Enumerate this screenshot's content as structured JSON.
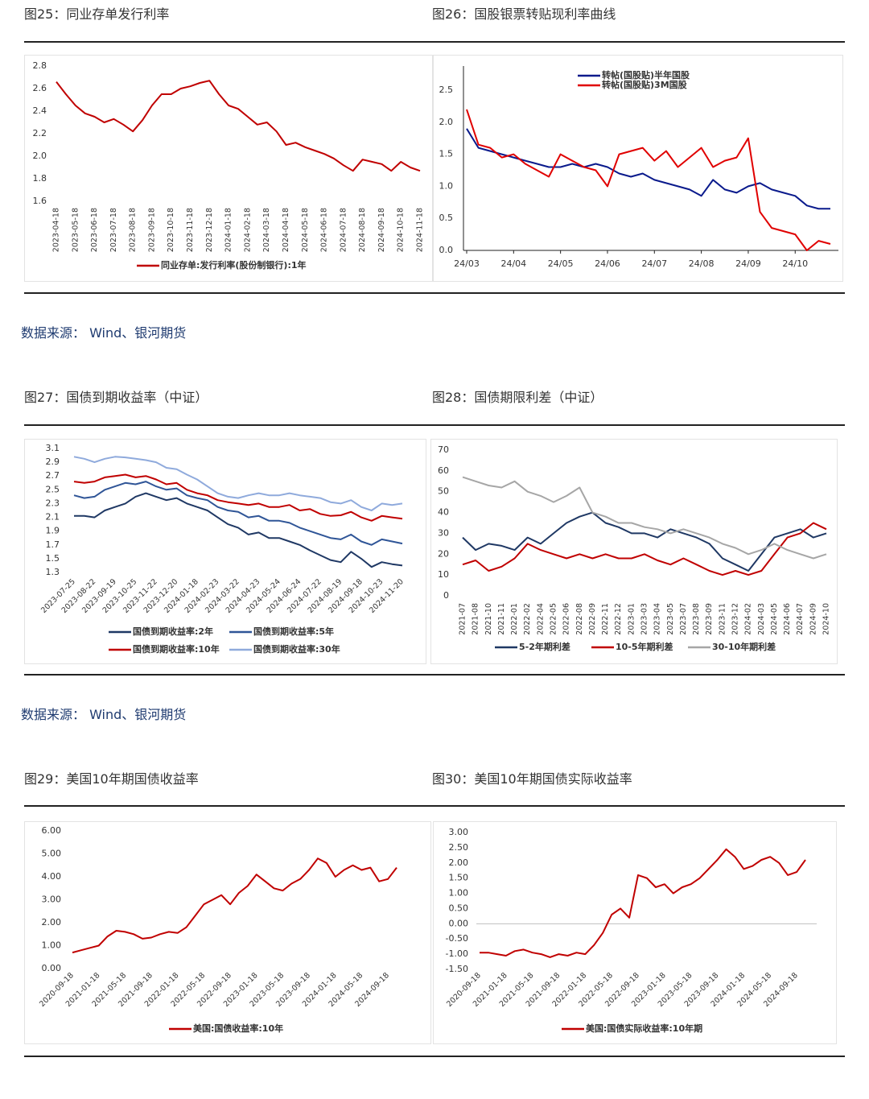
{
  "sources": [
    "数据来源： Wind、银河期货",
    "数据来源： Wind、银河期货"
  ],
  "chart_data": [
    {
      "type": "line",
      "title": "图25：同业存单发行利率",
      "legend": "bottom",
      "categories": [
        "2023-04-18",
        null,
        "2023-05-18",
        null,
        "2023-06-18",
        null,
        "2023-07-18",
        null,
        "2023-08-18",
        null,
        "2023-09-18",
        null,
        "2023-10-18",
        null,
        "2023-11-18",
        null,
        "2023-12-18",
        null,
        "2024-01-18",
        null,
        "2024-02-18",
        null,
        "2024-03-18",
        null,
        "2024-04-18",
        null,
        "2024-05-18",
        null,
        "2024-06-18",
        null,
        "2024-07-18",
        null,
        "2024-08-18",
        null,
        "2024-09-18",
        null,
        "2024-10-18",
        null,
        "2024-11-18"
      ],
      "series": [
        {
          "name": "同业存单:发行利率(股份制银行):1年",
          "color": "#c00000",
          "values": [
            2.66,
            2.55,
            2.45,
            2.38,
            2.35,
            2.3,
            2.33,
            2.28,
            2.22,
            2.32,
            2.45,
            2.55,
            2.55,
            2.6,
            2.62,
            2.65,
            2.67,
            2.55,
            2.45,
            2.42,
            2.35,
            2.28,
            2.3,
            2.22,
            2.1,
            2.12,
            2.08,
            2.05,
            2.02,
            1.98,
            1.92,
            1.87,
            1.97,
            1.95,
            1.93,
            1.87,
            1.95,
            1.9,
            1.87
          ]
        }
      ],
      "ylim": [
        1.6,
        2.8
      ],
      "yticks": [
        1.6,
        1.8,
        {
          "value": 2,
          "label": "2.0"
        },
        2.2,
        2.4,
        2.6,
        2.8
      ]
    },
    {
      "type": "line",
      "title": "图26：国股银票转贴现利率曲线",
      "legend": "top",
      "axes": true,
      "categories": [
        "24/03",
        null,
        null,
        null,
        "24/04",
        null,
        null,
        null,
        "24/05",
        null,
        null,
        null,
        "24/06",
        null,
        null,
        null,
        "24/07",
        null,
        null,
        null,
        "24/08",
        null,
        null,
        null,
        "24/09",
        null,
        null,
        null,
        "24/10",
        null,
        null,
        null
      ],
      "series": [
        {
          "name": "转帖(国股贴)半年国股",
          "color": "#0a1a8c",
          "values": [
            1.9,
            1.6,
            1.55,
            1.5,
            1.45,
            1.4,
            1.35,
            1.3,
            1.3,
            1.35,
            1.3,
            1.35,
            1.3,
            1.2,
            1.15,
            1.2,
            1.1,
            1.05,
            1.0,
            0.95,
            0.85,
            1.1,
            0.95,
            0.9,
            1.0,
            1.05,
            0.95,
            0.9,
            0.85,
            0.7,
            0.65,
            0.65
          ]
        },
        {
          "name": "转帖(国股贴)3M国股",
          "color": "#e00000",
          "values": [
            2.2,
            1.65,
            1.6,
            1.45,
            1.5,
            1.35,
            1.25,
            1.15,
            1.5,
            1.4,
            1.3,
            1.25,
            1.0,
            1.5,
            1.55,
            1.6,
            1.4,
            1.55,
            1.3,
            1.45,
            1.6,
            1.3,
            1.4,
            1.45,
            1.75,
            0.6,
            0.35,
            0.3,
            0.25,
            0.0,
            0.15,
            0.1
          ]
        }
      ],
      "ylim": [
        0,
        2.5
      ],
      "yticks": [
        {
          "value": 0,
          "label": "0.0"
        },
        0.5,
        {
          "value": 1,
          "label": "1.0"
        },
        1.5,
        {
          "value": 2,
          "label": "2.0"
        },
        2.5
      ]
    },
    {
      "type": "line",
      "title": "图27：国债到期收益率（中证）",
      "legend": "bottom",
      "categories": [
        "2023-07-25",
        null,
        "2023-08-22",
        null,
        "2023-09-19",
        null,
        "2023-10-25",
        null,
        "2023-11-22",
        null,
        "2023-12-20",
        null,
        "2024-01-18",
        null,
        "2024-02-23",
        null,
        "2024-03-22",
        null,
        "2024-04-23",
        null,
        "2024-05-24",
        null,
        "2024-06-24",
        null,
        "2024-07-22",
        null,
        "2024-08-19",
        null,
        "2024-09-18",
        null,
        "2024-10-23",
        null,
        "2024-11-20"
      ],
      "series": [
        {
          "name": "国债到期收益率:2年",
          "color": "#1f3864",
          "values": [
            2.12,
            2.12,
            2.1,
            2.2,
            2.25,
            2.3,
            2.4,
            2.45,
            2.4,
            2.35,
            2.38,
            2.3,
            2.25,
            2.2,
            2.1,
            2.0,
            1.95,
            1.85,
            1.88,
            1.8,
            1.8,
            1.75,
            1.7,
            1.62,
            1.55,
            1.48,
            1.45,
            1.6,
            1.5,
            1.38,
            1.45,
            1.42,
            1.4
          ]
        },
        {
          "name": "国债到期收益率:5年",
          "color": "#2f5597",
          "values": [
            2.42,
            2.38,
            2.4,
            2.5,
            2.55,
            2.6,
            2.58,
            2.62,
            2.55,
            2.5,
            2.52,
            2.42,
            2.38,
            2.35,
            2.25,
            2.2,
            2.18,
            2.1,
            2.12,
            2.05,
            2.05,
            2.02,
            1.95,
            1.9,
            1.85,
            1.8,
            1.78,
            1.85,
            1.75,
            1.7,
            1.78,
            1.75,
            1.72
          ]
        },
        {
          "name": "国债到期收益率:10年",
          "color": "#c00000",
          "values": [
            2.62,
            2.6,
            2.62,
            2.68,
            2.7,
            2.72,
            2.68,
            2.7,
            2.65,
            2.58,
            2.6,
            2.5,
            2.45,
            2.42,
            2.35,
            2.32,
            2.3,
            2.28,
            2.3,
            2.25,
            2.25,
            2.28,
            2.2,
            2.22,
            2.15,
            2.12,
            2.13,
            2.18,
            2.1,
            2.05,
            2.12,
            2.1,
            2.08
          ]
        },
        {
          "name": "国债到期收益率:30年",
          "color": "#8faadc",
          "values": [
            2.98,
            2.95,
            2.9,
            2.95,
            2.98,
            2.97,
            2.95,
            2.93,
            2.9,
            2.82,
            2.8,
            2.72,
            2.65,
            2.55,
            2.45,
            2.4,
            2.38,
            2.42,
            2.45,
            2.42,
            2.42,
            2.45,
            2.42,
            2.4,
            2.38,
            2.32,
            2.3,
            2.35,
            2.25,
            2.2,
            2.3,
            2.28,
            2.3
          ]
        }
      ],
      "ylim": [
        1.3,
        3.1
      ],
      "yticks": [
        1.3,
        1.5,
        1.7,
        1.9,
        2.1,
        2.3,
        2.5,
        2.7,
        2.9,
        3.1
      ]
    },
    {
      "type": "line",
      "title": "图28：国债期限利差（中证）",
      "legend": "bottom",
      "categories": [
        "2021-07",
        "2021-08",
        "2021-10",
        "2021-11",
        "2022-01",
        "2022-02",
        "2022-04",
        "2022-05",
        "2022-06",
        "2022-08",
        "2022-09",
        "2022-11",
        "2022-12",
        "2023-01",
        "2023-03",
        "2023-04",
        "2023-05",
        "2023-07",
        "2023-08",
        "2023-09",
        "2023-11",
        "2023-12",
        "2024-02",
        "2024-03",
        "2024-05",
        "2024-06",
        "2024-07",
        "2024-09",
        "2024-10"
      ],
      "series": [
        {
          "name": "5-2年期利差",
          "color": "#1f3864",
          "values": [
            28,
            22,
            25,
            24,
            22,
            28,
            25,
            30,
            35,
            38,
            40,
            35,
            33,
            30,
            30,
            28,
            32,
            30,
            28,
            25,
            18,
            15,
            12,
            20,
            28,
            30,
            32,
            28,
            30
          ]
        },
        {
          "name": "10-5年期利差",
          "color": "#c00000",
          "values": [
            15,
            17,
            12,
            14,
            18,
            25,
            22,
            20,
            18,
            20,
            18,
            20,
            18,
            18,
            20,
            17,
            15,
            18,
            15,
            12,
            10,
            12,
            10,
            12,
            20,
            28,
            30,
            35,
            32
          ]
        },
        {
          "name": "30-10年期利差",
          "color": "#a6a6a6",
          "values": [
            57,
            55,
            53,
            52,
            55,
            50,
            48,
            45,
            48,
            52,
            40,
            38,
            35,
            35,
            33,
            32,
            30,
            32,
            30,
            28,
            25,
            23,
            20,
            22,
            25,
            22,
            20,
            18,
            20
          ]
        }
      ],
      "ylim": [
        0,
        70
      ],
      "yticks": [
        0,
        10,
        20,
        30,
        40,
        50,
        60,
        70
      ]
    },
    {
      "type": "line",
      "title": "图29：美国10年期国债收益率",
      "legend": "bottom",
      "categories": [
        "2020-09-18",
        null,
        null,
        "2021-01-18",
        null,
        null,
        "2021-05-18",
        null,
        null,
        "2021-09-18",
        null,
        null,
        "2022-01-18",
        null,
        null,
        "2022-05-18",
        null,
        null,
        "2022-09-18",
        null,
        null,
        "2023-01-18",
        null,
        null,
        "2023-05-18",
        null,
        null,
        "2023-09-18",
        null,
        null,
        "2024-01-18",
        null,
        null,
        "2024-05-18",
        null,
        null,
        "2024-09-18",
        null
      ],
      "series": [
        {
          "name": "美国:国债收益率:10年",
          "color": "#c00000",
          "values": [
            0.7,
            0.8,
            0.9,
            1.0,
            1.4,
            1.65,
            1.6,
            1.5,
            1.3,
            1.35,
            1.5,
            1.6,
            1.55,
            1.8,
            2.3,
            2.8,
            3.0,
            3.2,
            2.8,
            3.3,
            3.6,
            4.1,
            3.8,
            3.5,
            3.4,
            3.7,
            3.9,
            4.3,
            4.8,
            4.6,
            4.0,
            4.3,
            4.5,
            4.3,
            4.4,
            3.8,
            3.9,
            4.4
          ]
        }
      ],
      "ylim": [
        0,
        6
      ],
      "yticks": [
        {
          "value": 0,
          "label": "0.00"
        },
        {
          "value": 1,
          "label": "1.00"
        },
        {
          "value": 2,
          "label": "2.00"
        },
        {
          "value": 3,
          "label": "3.00"
        },
        {
          "value": 4,
          "label": "4.00"
        },
        {
          "value": 5,
          "label": "5.00"
        },
        {
          "value": 6,
          "label": "6.00"
        }
      ]
    },
    {
      "type": "line",
      "title": "图30：美国10年期国债实际收益率",
      "legend": "bottom",
      "zero_line": true,
      "categories": [
        "2020-09-18",
        null,
        null,
        "2021-01-18",
        null,
        null,
        "2021-05-18",
        null,
        null,
        "2021-09-18",
        null,
        null,
        "2022-01-18",
        null,
        null,
        "2022-05-18",
        null,
        null,
        "2022-09-18",
        null,
        null,
        "2023-01-18",
        null,
        null,
        "2023-05-18",
        null,
        null,
        "2023-09-18",
        null,
        null,
        "2024-01-18",
        null,
        null,
        "2024-05-18",
        null,
        null,
        "2024-09-18",
        null
      ],
      "series": [
        {
          "name": "美国:国债实际收益率:10年期",
          "color": "#c00000",
          "values": [
            -0.95,
            -0.95,
            -1.0,
            -1.05,
            -0.9,
            -0.85,
            -0.95,
            -1.0,
            -1.1,
            -1.0,
            -1.05,
            -0.95,
            -1.0,
            -0.7,
            -0.3,
            0.3,
            0.5,
            0.2,
            1.6,
            1.5,
            1.2,
            1.3,
            1.0,
            1.2,
            1.3,
            1.5,
            1.8,
            2.1,
            2.45,
            2.2,
            1.8,
            1.9,
            2.1,
            2.2,
            2.0,
            1.6,
            1.7,
            2.1
          ]
        }
      ],
      "ylim": [
        -1.5,
        3
      ],
      "yticks": [
        {
          "value": -1.5,
          "label": "-1.50"
        },
        {
          "value": -1,
          "label": "-1.00"
        },
        {
          "value": -0.5,
          "label": "-0.50"
        },
        {
          "value": 0,
          "label": "0.00"
        },
        {
          "value": 0.5,
          "label": "0.50"
        },
        {
          "value": 1,
          "label": "1.00"
        },
        {
          "value": 1.5,
          "label": "1.50"
        },
        {
          "value": 2,
          "label": "2.00"
        },
        {
          "value": 2.5,
          "label": "2.50"
        },
        {
          "value": 3,
          "label": "3.00"
        }
      ]
    }
  ]
}
